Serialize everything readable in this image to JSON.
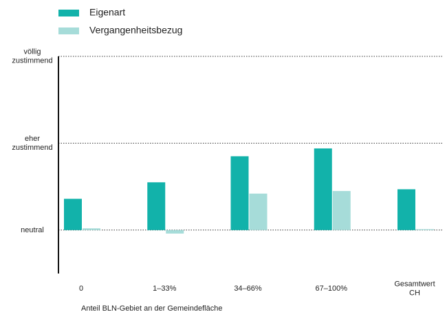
{
  "chart_data": {
    "type": "bar",
    "x_label": "Anteil BLN-Gebiet an der Gemeindefläche",
    "categories": [
      "0",
      "1–33%",
      "34–66%",
      "67–100%",
      "Gesamtwert CH"
    ],
    "series": [
      {
        "name": "Eigenart",
        "color": "#12b2aa",
        "values": [
          0.36,
          0.55,
          0.85,
          0.94,
          0.47
        ]
      },
      {
        "name": "Vergangenheitsbezug",
        "color": "#a6dcd9",
        "values": [
          0.02,
          -0.04,
          0.42,
          0.45,
          0.01
        ]
      }
    ],
    "ylim": [
      -0.5,
      2
    ],
    "yticks": [
      {
        "value": 0,
        "label": "neutral"
      },
      {
        "value": 1,
        "label": "eher zustimmend"
      },
      {
        "value": 2,
        "label": "völlig zustimmend"
      }
    ],
    "grid": true
  }
}
